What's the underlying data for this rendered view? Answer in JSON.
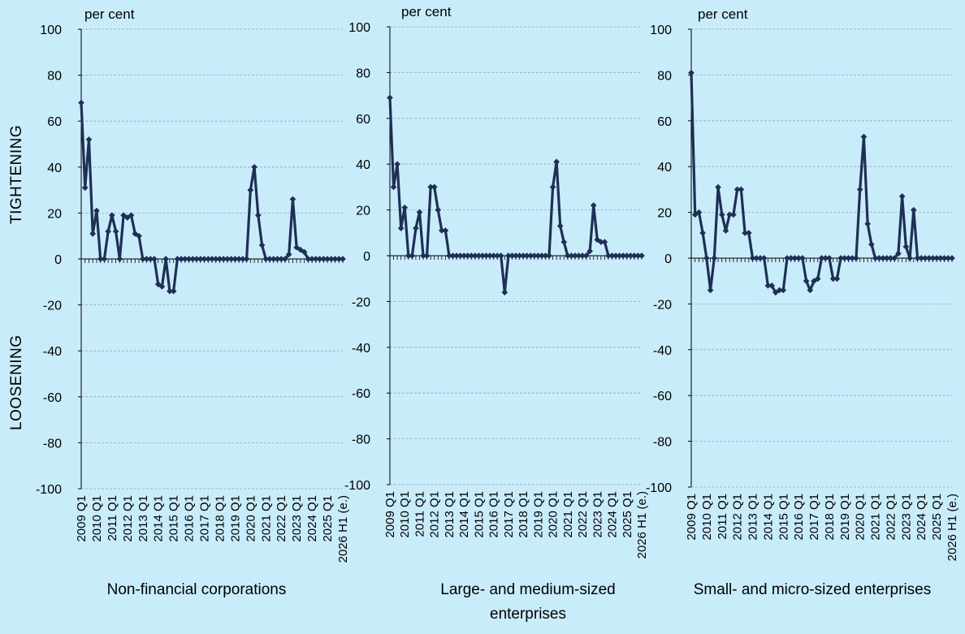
{
  "side_labels": {
    "upper": "TIGHTENING",
    "lower": "LOOSENING"
  },
  "chart_data": [
    {
      "type": "line",
      "title": "Non-financial corporations",
      "ylabel": "per cent",
      "ylim": [
        -100,
        100
      ],
      "yticks": [
        -100,
        -80,
        -60,
        -40,
        -20,
        0,
        20,
        40,
        60,
        80,
        100
      ],
      "grid": true,
      "color": "#1f2f55",
      "xtick_labels": [
        "2009 Q1",
        "2010 Q1",
        "2011 Q1",
        "2012 Q1",
        "2013 Q1",
        "2014 Q1",
        "2015 Q1",
        "2016 Q1",
        "2017 Q1",
        "2018 Q1",
        "2019 Q1",
        "2020 Q1",
        "2021 Q1",
        "2022 Q1",
        "2023 Q1",
        "2024 Q1",
        "2025 Q1",
        "2026 H1 (e.)"
      ],
      "values": [
        68,
        31,
        52,
        11,
        21,
        0,
        0,
        12,
        19,
        12,
        0,
        19,
        18,
        19,
        11,
        10,
        0,
        0,
        0,
        0,
        -11,
        -12,
        0,
        -14,
        -14,
        0,
        0,
        0,
        0,
        0,
        0,
        0,
        0,
        0,
        0,
        0,
        0,
        0,
        0,
        0,
        0,
        0,
        0,
        0,
        30,
        40,
        19,
        6,
        0,
        0,
        0,
        0,
        0,
        0,
        2,
        26,
        5,
        4,
        3,
        0,
        0,
        0,
        0,
        0,
        0,
        0,
        0,
        0,
        0
      ]
    },
    {
      "type": "line",
      "title": "Large- and medium-sized enterprises",
      "ylabel": "per cent",
      "ylim": [
        -100,
        100
      ],
      "yticks": [
        -100,
        -80,
        -60,
        -40,
        -20,
        0,
        20,
        40,
        60,
        80,
        100
      ],
      "grid": true,
      "color": "#1f2f55",
      "xtick_labels": [
        "2009 Q1",
        "2010 Q1",
        "2011 Q1",
        "2012 Q1",
        "2013 Q1",
        "2014 Q1",
        "2015 Q1",
        "2016 Q1",
        "2017 Q1",
        "2018 Q1",
        "2019 Q1",
        "2020 Q1",
        "2021 Q1",
        "2022 Q1",
        "2023 Q1",
        "2024 Q1",
        "2025 Q1",
        "2026 H1 (e.)"
      ],
      "values": [
        69,
        30,
        40,
        12,
        21,
        0,
        0,
        12,
        19,
        0,
        0,
        30,
        30,
        20,
        11,
        11,
        0,
        0,
        0,
        0,
        0,
        0,
        0,
        0,
        0,
        0,
        0,
        0,
        0,
        0,
        0,
        -16,
        0,
        0,
        0,
        0,
        0,
        0,
        0,
        0,
        0,
        0,
        0,
        0,
        30,
        41,
        13,
        6,
        0,
        0,
        0,
        0,
        0,
        0,
        2,
        22,
        7,
        6,
        6,
        0,
        0,
        0,
        0,
        0,
        0,
        0,
        0,
        0,
        0
      ]
    },
    {
      "type": "line",
      "title": "Small- and micro-sized enterprises",
      "ylabel": "per cent",
      "ylim": [
        -100,
        100
      ],
      "yticks": [
        -100,
        -80,
        -60,
        -40,
        -20,
        0,
        20,
        40,
        60,
        80,
        100
      ],
      "grid": true,
      "color": "#1f2f55",
      "xtick_labels": [
        "2009 Q1",
        "2010 Q1",
        "2011 Q1",
        "2012 Q1",
        "2013 Q1",
        "2014 Q1",
        "2015 Q1",
        "2016 Q1",
        "2017 Q1",
        "2018 Q1",
        "2019 Q1",
        "2020 Q1",
        "2021 Q1",
        "2022 Q1",
        "2023 Q1",
        "2024 Q1",
        "2025 Q1",
        "2026 H1 (e.)"
      ],
      "values": [
        81,
        19,
        20,
        11,
        0,
        -14,
        0,
        31,
        19,
        12,
        19,
        19,
        30,
        30,
        11,
        11,
        0,
        0,
        0,
        0,
        -12,
        -12,
        -15,
        -14,
        -14,
        0,
        0,
        0,
        0,
        0,
        -10,
        -14,
        -10,
        -9,
        0,
        0,
        0,
        -9,
        -9,
        0,
        0,
        0,
        0,
        0,
        30,
        53,
        15,
        6,
        0,
        0,
        0,
        0,
        0,
        0,
        2,
        27,
        5,
        0,
        21,
        0,
        0,
        0,
        0,
        0,
        0,
        0,
        0,
        0,
        0
      ]
    }
  ]
}
